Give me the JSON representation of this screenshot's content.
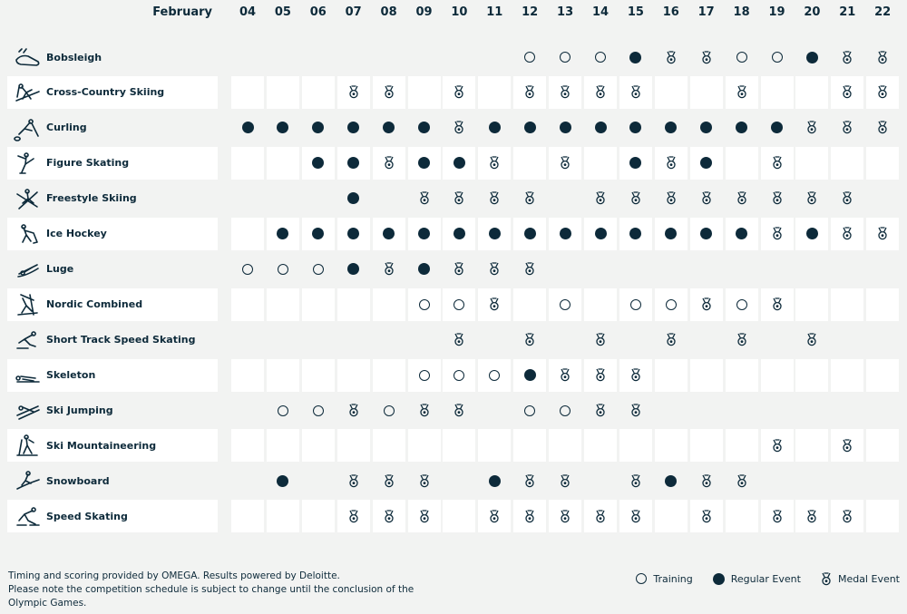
{
  "header": {
    "month": "February",
    "days": [
      "04",
      "05",
      "06",
      "07",
      "08",
      "09",
      "10",
      "11",
      "12",
      "13",
      "14",
      "15",
      "16",
      "17",
      "18",
      "19",
      "20",
      "21",
      "22"
    ]
  },
  "sports": [
    {
      "name": "Bobsleigh",
      "icon": "bobsleigh-icon",
      "events": [
        "",
        "",
        "",
        "",
        "",
        "",
        "",
        "",
        "T",
        "T",
        "T",
        "R",
        "M",
        "M",
        "T",
        "T",
        "R",
        "M",
        "M"
      ]
    },
    {
      "name": "Cross-Country Skiing",
      "icon": "cross-country-skiing-icon",
      "events": [
        "",
        "",
        "",
        "M",
        "M",
        "",
        "M",
        "",
        "M",
        "M",
        "M",
        "M",
        "",
        "",
        "M",
        "",
        "",
        "M",
        "M"
      ]
    },
    {
      "name": "Curling",
      "icon": "curling-icon",
      "events": [
        "R",
        "R",
        "R",
        "R",
        "R",
        "R",
        "M",
        "R",
        "R",
        "R",
        "R",
        "R",
        "R",
        "R",
        "R",
        "R",
        "M",
        "M",
        "M"
      ]
    },
    {
      "name": "Figure Skating",
      "icon": "figure-skating-icon",
      "events": [
        "",
        "",
        "R",
        "R",
        "M",
        "R",
        "R",
        "M",
        "",
        "M",
        "",
        "R",
        "M",
        "R",
        "",
        "M",
        "",
        "",
        ""
      ]
    },
    {
      "name": "Freestyle Skiing",
      "icon": "freestyle-skiing-icon",
      "events": [
        "",
        "",
        "",
        "R",
        "",
        "M",
        "M",
        "M",
        "M",
        "",
        "M",
        "M",
        "M",
        "M",
        "M",
        "M",
        "M",
        "M",
        ""
      ]
    },
    {
      "name": "Ice Hockey",
      "icon": "ice-hockey-icon",
      "events": [
        "",
        "R",
        "R",
        "R",
        "R",
        "R",
        "R",
        "R",
        "R",
        "R",
        "R",
        "R",
        "R",
        "R",
        "R",
        "M",
        "R",
        "M",
        "M"
      ]
    },
    {
      "name": "Luge",
      "icon": "luge-icon",
      "events": [
        "T",
        "T",
        "T",
        "R",
        "M",
        "R",
        "M",
        "M",
        "M",
        "",
        "",
        "",
        "",
        "",
        "",
        "",
        "",
        "",
        ""
      ]
    },
    {
      "name": "Nordic Combined",
      "icon": "nordic-combined-icon",
      "events": [
        "",
        "",
        "",
        "",
        "",
        "T",
        "T",
        "M",
        "",
        "T",
        "",
        "T",
        "T",
        "M",
        "T",
        "M",
        "",
        "",
        ""
      ]
    },
    {
      "name": "Short Track Speed Skating",
      "icon": "short-track-icon",
      "events": [
        "",
        "",
        "",
        "",
        "",
        "",
        "M",
        "",
        "M",
        "",
        "M",
        "",
        "M",
        "",
        "M",
        "",
        "M",
        "",
        ""
      ]
    },
    {
      "name": "Skeleton",
      "icon": "skeleton-icon",
      "events": [
        "",
        "",
        "",
        "",
        "",
        "T",
        "T",
        "T",
        "R",
        "M",
        "M",
        "M",
        "",
        "",
        "",
        "",
        "",
        "",
        ""
      ]
    },
    {
      "name": "Ski Jumping",
      "icon": "ski-jumping-icon",
      "events": [
        "",
        "T",
        "T",
        "M",
        "T",
        "M",
        "M",
        "",
        "T",
        "T",
        "M",
        "M",
        "",
        "",
        "",
        "",
        "",
        "",
        ""
      ]
    },
    {
      "name": "Ski Mountaineering",
      "icon": "ski-mountaineering-icon",
      "events": [
        "",
        "",
        "",
        "",
        "",
        "",
        "",
        "",
        "",
        "",
        "",
        "",
        "",
        "",
        "",
        "M",
        "",
        "M",
        ""
      ]
    },
    {
      "name": "Snowboard",
      "icon": "snowboard-icon",
      "events": [
        "",
        "R",
        "",
        "M",
        "M",
        "M",
        "",
        "R",
        "M",
        "M",
        "",
        "M",
        "R",
        "M",
        "M",
        "",
        "",
        "",
        ""
      ]
    },
    {
      "name": "Speed Skating",
      "icon": "speed-skating-icon",
      "events": [
        "",
        "",
        "",
        "M",
        "M",
        "M",
        "",
        "M",
        "M",
        "M",
        "M",
        "M",
        "",
        "M",
        "",
        "M",
        "M",
        "M",
        ""
      ]
    }
  ],
  "footnote": {
    "line1": "Timing and scoring provided by OMEGA. Results powered by Deloitte.",
    "line2": "Please note the competition schedule is subject to change until the conclusion of the Olympic Games."
  },
  "legend": {
    "training": "Training",
    "regular": "Regular Event",
    "medal": "Medal Event"
  },
  "colors": {
    "ink": "#0d2a3a",
    "background": "#f2f3f2",
    "cell": "#ffffff"
  }
}
